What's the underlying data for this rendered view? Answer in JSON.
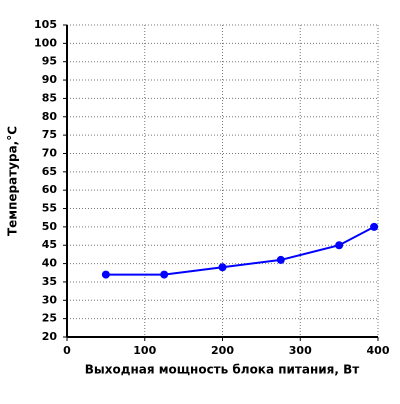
{
  "chart_data": {
    "type": "line",
    "x_label": "Выходная мощность блока питания, Вт",
    "y_label": "Температура,°С",
    "x": [
      50,
      125,
      200,
      275,
      350,
      395
    ],
    "series": [
      {
        "color": "#0000ff",
        "values": [
          37,
          37,
          39,
          41,
          45,
          50
        ]
      }
    ],
    "xlim": [
      0,
      400
    ],
    "xticks": [
      0,
      100,
      200,
      300,
      400
    ],
    "ylim": [
      20,
      105
    ],
    "yticks": [
      20,
      25,
      30,
      35,
      40,
      45,
      50,
      55,
      60,
      65,
      70,
      75,
      80,
      85,
      90,
      95,
      100,
      105
    ],
    "grid": true
  }
}
